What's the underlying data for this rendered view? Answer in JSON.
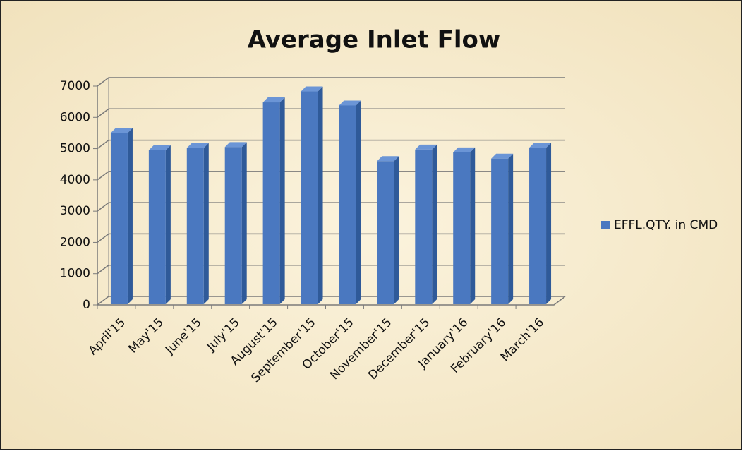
{
  "chart_data": {
    "type": "bar",
    "title": "Average Inlet Flow",
    "categories": [
      "April'15",
      "May'15",
      "June'15",
      "July'15",
      "August'15",
      "September'15",
      "October'15",
      "November'15",
      "December'15",
      "January'16",
      "February'16",
      "March'16"
    ],
    "series": [
      {
        "name": "EFFL.QTY. in CMD",
        "color": "#4a78c0",
        "values": [
          5500,
          4950,
          5020,
          5050,
          6480,
          6830,
          6380,
          4600,
          4970,
          4880,
          4680,
          5030
        ]
      }
    ],
    "ylim": [
      0,
      7000
    ],
    "yticks": [
      0,
      1000,
      2000,
      3000,
      4000,
      5000,
      6000,
      7000
    ],
    "grid": true,
    "legend": "right"
  }
}
